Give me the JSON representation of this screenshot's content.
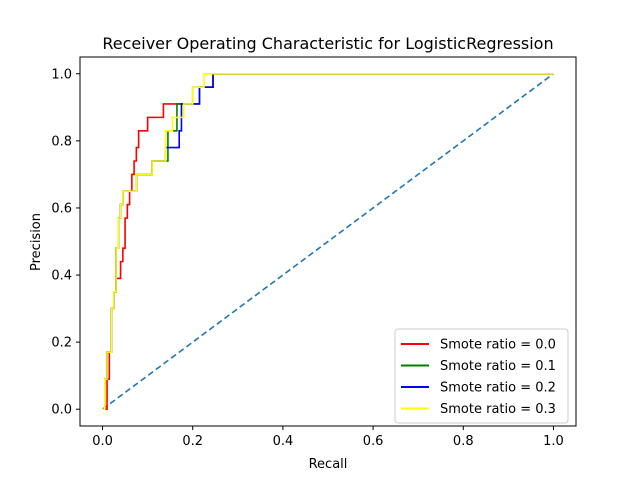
{
  "chart_data": {
    "type": "line",
    "title": "Receiver Operating Characteristic for LogisticRegression",
    "xlabel": "Recall",
    "ylabel": "Precision",
    "xlim": [
      -0.05,
      1.05
    ],
    "ylim": [
      -0.05,
      1.05
    ],
    "xticks": [
      "0.0",
      "0.2",
      "0.4",
      "0.6",
      "0.8",
      "1.0"
    ],
    "yticks": [
      "0.0",
      "0.2",
      "0.4",
      "0.6",
      "0.8",
      "1.0"
    ],
    "grid": false,
    "legend_position": "lower-right",
    "series": [
      {
        "name": "Smote ratio = 0.0",
        "color": "#ff0000",
        "x": [
          0.0,
          0.01,
          0.01,
          0.015,
          0.015,
          0.02,
          0.02,
          0.025,
          0.025,
          0.03,
          0.03,
          0.04,
          0.04,
          0.045,
          0.045,
          0.05,
          0.05,
          0.055,
          0.055,
          0.06,
          0.06,
          0.065,
          0.065,
          0.07,
          0.07,
          0.075,
          0.075,
          0.08,
          0.08,
          0.1,
          0.1,
          0.135,
          0.135,
          0.16,
          0.16,
          0.2,
          0.2,
          0.215,
          0.215,
          0.245,
          0.245,
          1.0
        ],
        "y": [
          0.0,
          0.0,
          0.09,
          0.09,
          0.17,
          0.17,
          0.3,
          0.3,
          0.35,
          0.35,
          0.39,
          0.39,
          0.44,
          0.44,
          0.48,
          0.48,
          0.57,
          0.57,
          0.61,
          0.61,
          0.65,
          0.65,
          0.7,
          0.7,
          0.74,
          0.74,
          0.78,
          0.78,
          0.83,
          0.83,
          0.87,
          0.87,
          0.91,
          0.91,
          0.91,
          0.91,
          0.96,
          0.96,
          0.96,
          0.96,
          1.0,
          1.0
        ]
      },
      {
        "name": "Smote ratio = 0.1",
        "color": "#008000",
        "x": [
          0.0,
          0.005,
          0.005,
          0.01,
          0.01,
          0.02,
          0.02,
          0.025,
          0.025,
          0.03,
          0.03,
          0.035,
          0.035,
          0.04,
          0.04,
          0.045,
          0.045,
          0.075,
          0.075,
          0.11,
          0.11,
          0.145,
          0.145,
          0.165,
          0.165,
          0.2,
          0.2,
          0.215,
          0.215,
          0.245,
          0.245,
          1.0
        ],
        "y": [
          0.0,
          0.0,
          0.09,
          0.09,
          0.17,
          0.17,
          0.3,
          0.3,
          0.35,
          0.35,
          0.48,
          0.48,
          0.57,
          0.57,
          0.61,
          0.61,
          0.65,
          0.65,
          0.7,
          0.7,
          0.74,
          0.74,
          0.83,
          0.83,
          0.91,
          0.91,
          0.91,
          0.91,
          0.96,
          0.96,
          1.0,
          1.0
        ]
      },
      {
        "name": "Smote ratio = 0.2",
        "color": "#0000ff",
        "x": [
          0.0,
          0.005,
          0.005,
          0.01,
          0.01,
          0.02,
          0.02,
          0.025,
          0.025,
          0.03,
          0.03,
          0.035,
          0.035,
          0.04,
          0.04,
          0.045,
          0.045,
          0.075,
          0.075,
          0.11,
          0.11,
          0.14,
          0.14,
          0.17,
          0.17,
          0.175,
          0.175,
          0.2,
          0.2,
          0.215,
          0.215,
          0.245,
          0.245,
          1.0
        ],
        "y": [
          0.0,
          0.0,
          0.09,
          0.09,
          0.17,
          0.17,
          0.3,
          0.3,
          0.35,
          0.35,
          0.48,
          0.48,
          0.57,
          0.57,
          0.61,
          0.61,
          0.65,
          0.65,
          0.7,
          0.7,
          0.74,
          0.74,
          0.78,
          0.78,
          0.83,
          0.83,
          0.91,
          0.91,
          0.91,
          0.91,
          0.96,
          0.96,
          1.0,
          1.0
        ]
      },
      {
        "name": "Smote ratio = 0.3",
        "color": "#ffff00",
        "x": [
          0.0,
          0.005,
          0.005,
          0.01,
          0.01,
          0.02,
          0.02,
          0.025,
          0.025,
          0.03,
          0.03,
          0.035,
          0.035,
          0.04,
          0.04,
          0.045,
          0.045,
          0.075,
          0.075,
          0.11,
          0.11,
          0.14,
          0.14,
          0.155,
          0.155,
          0.18,
          0.18,
          0.2,
          0.2,
          0.215,
          0.215,
          0.225,
          0.225,
          1.0
        ],
        "y": [
          0.0,
          0.0,
          0.09,
          0.09,
          0.17,
          0.17,
          0.3,
          0.3,
          0.35,
          0.35,
          0.48,
          0.48,
          0.57,
          0.57,
          0.61,
          0.61,
          0.65,
          0.65,
          0.7,
          0.7,
          0.74,
          0.74,
          0.83,
          0.83,
          0.87,
          0.87,
          0.91,
          0.91,
          0.96,
          0.96,
          0.96,
          0.96,
          1.0,
          1.0
        ]
      },
      {
        "name": "",
        "color": "#1f77b4",
        "dashed": true,
        "x": [
          0.0,
          1.0
        ],
        "y": [
          0.0,
          1.0
        ]
      }
    ]
  }
}
